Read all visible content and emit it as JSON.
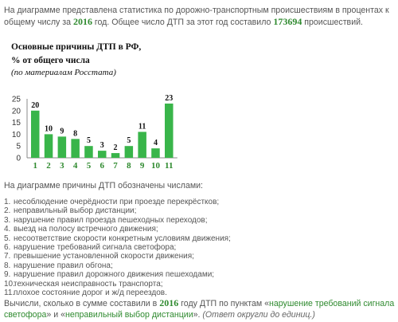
{
  "intro": {
    "text_a": "На диаграмме представлена статистика по дорожно-транспортным происшествиям в процентах к общему числу за ",
    "year": "2016",
    "text_b": " год. Общее число ДТП за этот год составило ",
    "total": "173694",
    "text_c": " происшествий."
  },
  "chart_heading": {
    "line1": "Основные причины ДТП в РФ,",
    "line2": "% от общего числа",
    "source": "(по материалам Росстата)"
  },
  "chart_data": {
    "type": "bar",
    "categories": [
      "1",
      "2",
      "3",
      "4",
      "5",
      "6",
      "7",
      "8",
      "9",
      "10",
      "11"
    ],
    "values": [
      20,
      10,
      9,
      8,
      5,
      3,
      2,
      5,
      11,
      4,
      23
    ],
    "title": "Основные причины ДТП в РФ, % от общего числа",
    "ylim": [
      0,
      25
    ],
    "yticks": [
      "0",
      "5",
      "10",
      "15",
      "20",
      "25"
    ],
    "grid": false,
    "bar_color": "#39b54a",
    "label_color": "#111111",
    "tick_color": "#2f8a2f"
  },
  "list": {
    "heading": "На диаграмме причины ДТП обозначены числами:",
    "items": [
      {
        "num": "1.",
        "text": "несоблюдение очерёдности при проезде перекрёстков;"
      },
      {
        "num": "2.",
        "text": "неправильный выбор дистанции;"
      },
      {
        "num": "3.",
        "text": "нарушение правил проезда пешеходных переходов;"
      },
      {
        "num": "4.",
        "text": "выезд на полосу встречного движения;"
      },
      {
        "num": "5.",
        "text": "несоответствие скорости конкретным условиям движения;"
      },
      {
        "num": "6.",
        "text": "нарушение требований сигнала светофора;"
      },
      {
        "num": "7.",
        "text": "превышение установленной скорости движения;"
      },
      {
        "num": "8.",
        "text": "нарушение правил обгона;"
      },
      {
        "num": "9.",
        "text": "нарушение правил дорожного движения пешеходами;"
      },
      {
        "num": "10.",
        "text": "техническая неисправность транспорта;"
      },
      {
        "num": "11.",
        "text": "плохое состояние дорог и ж/д переездов."
      }
    ]
  },
  "question": {
    "text_a": "Вычисли, сколько в сумме составили в ",
    "year": "2016",
    "text_b": " году ДТП по пунктам «",
    "item1": "нарушение требований сигнала светофора",
    "text_c": "» и «",
    "item2": "неправильный выбор дистанции",
    "text_d": "». ",
    "note": "(Ответ округли до единиц.)"
  }
}
